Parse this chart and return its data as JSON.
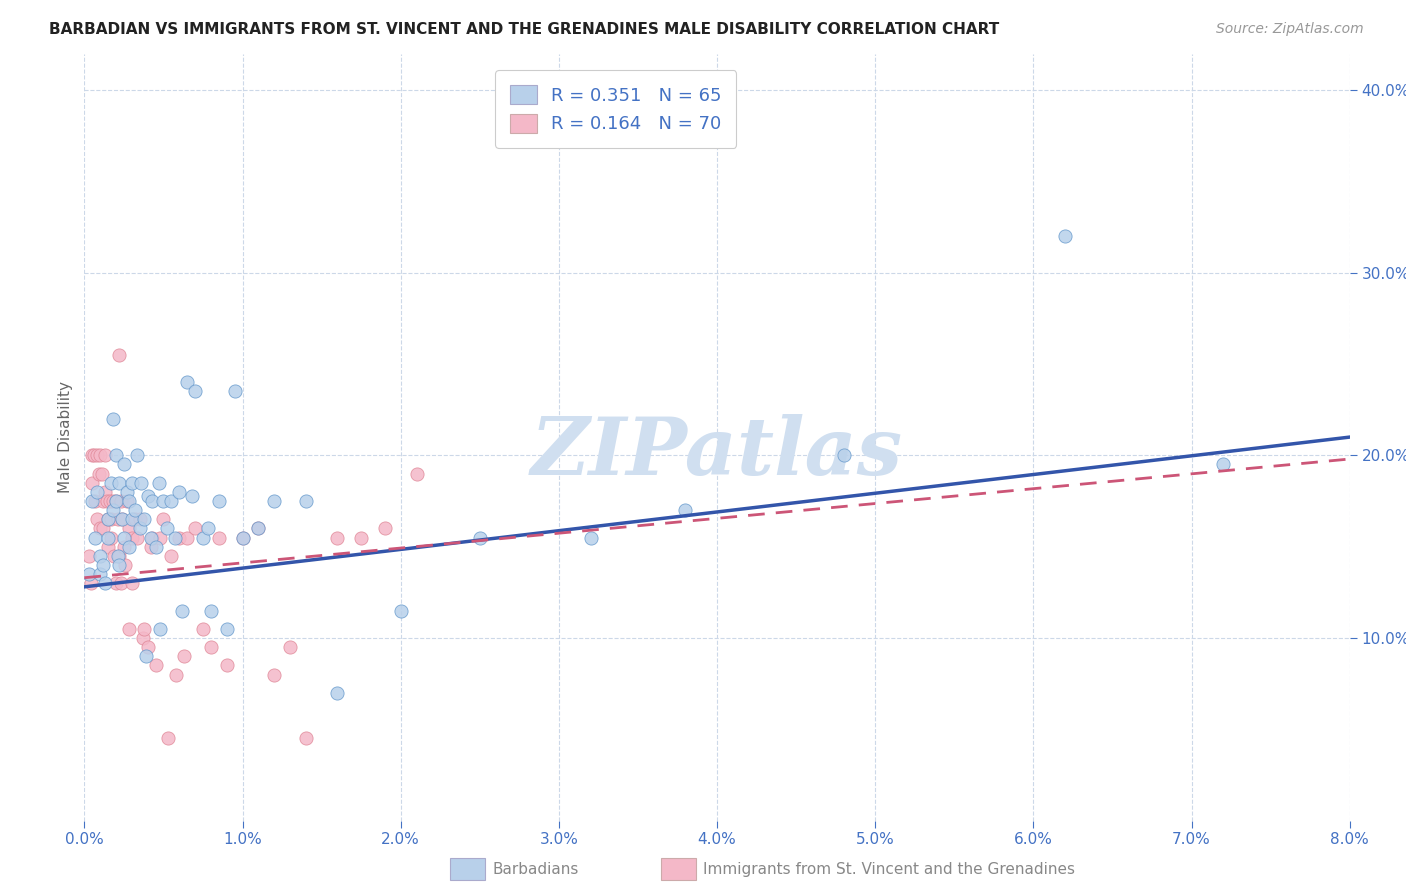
{
  "title": "BARBADIAN VS IMMIGRANTS FROM ST. VINCENT AND THE GRENADINES MALE DISABILITY CORRELATION CHART",
  "source": "Source: ZipAtlas.com",
  "ylabel": "Male Disability",
  "xlim": [
    0.0,
    0.08
  ],
  "ylim": [
    0.0,
    0.42
  ],
  "xticks": [
    0.0,
    0.01,
    0.02,
    0.03,
    0.04,
    0.05,
    0.06,
    0.07,
    0.08
  ],
  "yticks": [
    0.1,
    0.2,
    0.3,
    0.4
  ],
  "blue_R": 0.351,
  "blue_N": 65,
  "pink_R": 0.164,
  "pink_N": 70,
  "blue_fill_color": "#b8d0ea",
  "pink_fill_color": "#f4b8c8",
  "blue_edge_color": "#6699cc",
  "pink_edge_color": "#e08898",
  "blue_line_color": "#3355aa",
  "pink_line_color": "#cc5577",
  "watermark": "ZIPatlas",
  "watermark_color": "#d0dff0",
  "background_color": "#ffffff",
  "grid_color": "#ccd8e8",
  "blue_scatter_x": [
    0.0003,
    0.0005,
    0.0007,
    0.0008,
    0.001,
    0.001,
    0.0012,
    0.0013,
    0.0015,
    0.0015,
    0.0017,
    0.0018,
    0.0018,
    0.002,
    0.002,
    0.0021,
    0.0022,
    0.0022,
    0.0024,
    0.0025,
    0.0025,
    0.0027,
    0.0028,
    0.0028,
    0.003,
    0.003,
    0.0032,
    0.0033,
    0.0035,
    0.0036,
    0.0038,
    0.0039,
    0.004,
    0.0042,
    0.0043,
    0.0045,
    0.0047,
    0.0048,
    0.005,
    0.0052,
    0.0055,
    0.0057,
    0.006,
    0.0062,
    0.0065,
    0.0068,
    0.007,
    0.0075,
    0.0078,
    0.008,
    0.0085,
    0.009,
    0.0095,
    0.01,
    0.011,
    0.012,
    0.014,
    0.016,
    0.02,
    0.025,
    0.032,
    0.038,
    0.048,
    0.062,
    0.072
  ],
  "blue_scatter_y": [
    0.135,
    0.175,
    0.155,
    0.18,
    0.145,
    0.135,
    0.14,
    0.13,
    0.165,
    0.155,
    0.185,
    0.17,
    0.22,
    0.175,
    0.2,
    0.145,
    0.185,
    0.14,
    0.165,
    0.155,
    0.195,
    0.18,
    0.15,
    0.175,
    0.165,
    0.185,
    0.17,
    0.2,
    0.16,
    0.185,
    0.165,
    0.09,
    0.178,
    0.155,
    0.175,
    0.15,
    0.185,
    0.105,
    0.175,
    0.16,
    0.175,
    0.155,
    0.18,
    0.115,
    0.24,
    0.178,
    0.235,
    0.155,
    0.16,
    0.115,
    0.175,
    0.105,
    0.235,
    0.155,
    0.16,
    0.175,
    0.175,
    0.07,
    0.115,
    0.155,
    0.155,
    0.17,
    0.2,
    0.32,
    0.195
  ],
  "pink_scatter_x": [
    0.0003,
    0.0004,
    0.0005,
    0.0005,
    0.0006,
    0.0007,
    0.0008,
    0.0008,
    0.0009,
    0.001,
    0.001,
    0.0011,
    0.0012,
    0.0012,
    0.0013,
    0.0013,
    0.0014,
    0.0015,
    0.0015,
    0.0016,
    0.0017,
    0.0017,
    0.0018,
    0.0019,
    0.002,
    0.002,
    0.0021,
    0.0022,
    0.0022,
    0.0023,
    0.0023,
    0.0024,
    0.0025,
    0.0026,
    0.0027,
    0.0028,
    0.0028,
    0.003,
    0.003,
    0.0032,
    0.0033,
    0.0035,
    0.0037,
    0.0038,
    0.004,
    0.0042,
    0.0043,
    0.0045,
    0.0048,
    0.005,
    0.0053,
    0.0055,
    0.0058,
    0.006,
    0.0063,
    0.0065,
    0.007,
    0.0075,
    0.008,
    0.0085,
    0.009,
    0.01,
    0.011,
    0.012,
    0.013,
    0.014,
    0.016,
    0.0175,
    0.019,
    0.021
  ],
  "pink_scatter_y": [
    0.145,
    0.13,
    0.2,
    0.185,
    0.2,
    0.175,
    0.2,
    0.165,
    0.19,
    0.16,
    0.2,
    0.19,
    0.175,
    0.16,
    0.2,
    0.18,
    0.175,
    0.165,
    0.15,
    0.175,
    0.165,
    0.155,
    0.175,
    0.145,
    0.175,
    0.13,
    0.165,
    0.145,
    0.255,
    0.175,
    0.13,
    0.165,
    0.15,
    0.14,
    0.175,
    0.16,
    0.105,
    0.155,
    0.13,
    0.165,
    0.155,
    0.165,
    0.1,
    0.105,
    0.095,
    0.15,
    0.155,
    0.085,
    0.155,
    0.165,
    0.045,
    0.145,
    0.08,
    0.155,
    0.09,
    0.155,
    0.16,
    0.105,
    0.095,
    0.155,
    0.085,
    0.155,
    0.16,
    0.08,
    0.095,
    0.045,
    0.155,
    0.155,
    0.16,
    0.19
  ],
  "bottom_legend_label1": "Barbadians",
  "bottom_legend_label2": "Immigrants from St. Vincent and the Grenadines"
}
